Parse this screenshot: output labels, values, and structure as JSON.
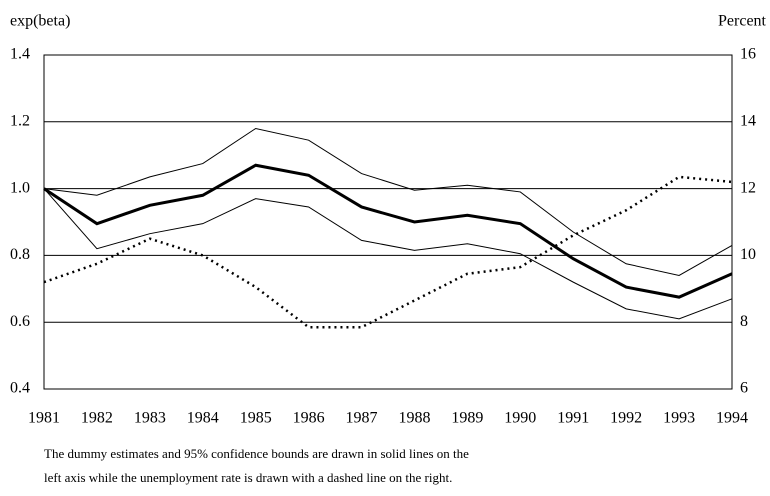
{
  "chart_data": {
    "type": "line",
    "y_label": "exp(beta)",
    "y2_label": "Percent",
    "categories": [
      "1981",
      "1982",
      "1983",
      "1984",
      "1985",
      "1986",
      "1987",
      "1988",
      "1989",
      "1990",
      "1991",
      "1992",
      "1993",
      "1994"
    ],
    "series": [
      {
        "color": "#000000",
        "linestyle": "solid",
        "values": [
          1.0,
          0.895,
          0.95,
          0.98,
          1.07,
          1.04,
          0.945,
          0.9,
          0.92,
          0.895,
          0.79,
          0.705,
          0.675,
          0.745
        ]
      },
      {
        "color": "#000000",
        "linestyle": "solid",
        "values": [
          1.0,
          0.98,
          1.035,
          1.075,
          1.18,
          1.145,
          1.045,
          0.995,
          1.01,
          0.99,
          0.87,
          0.775,
          0.74,
          0.83
        ]
      },
      {
        "color": "#000000",
        "linestyle": "solid",
        "values": [
          1.0,
          0.82,
          0.865,
          0.895,
          0.97,
          0.945,
          0.845,
          0.815,
          0.835,
          0.805,
          0.72,
          0.64,
          0.61,
          0.67
        ]
      },
      {
        "color": "#000000",
        "linestyle": "dashed",
        "axis": "y2",
        "values": [
          9.2,
          9.75,
          10.5,
          10.0,
          9.05,
          7.85,
          7.85,
          8.65,
          9.45,
          9.65,
          10.6,
          11.35,
          12.35,
          12.2
        ]
      }
    ],
    "ylim": [
      0.4,
      1.4
    ],
    "yticks": [
      0.4,
      0.6,
      0.8,
      {
        "value": 1.0,
        "label": "1.0"
      },
      1.2,
      1.4
    ],
    "y2lim": [
      6,
      16
    ],
    "y2ticks": [
      6,
      8,
      10,
      12,
      14,
      16
    ],
    "grid": true,
    "note": [
      "The dummy estimates and 95% confidence bounds are drawn in solid lines on the",
      "left axis while the unemployment rate is drawn with  a dashed line on the right."
    ]
  }
}
